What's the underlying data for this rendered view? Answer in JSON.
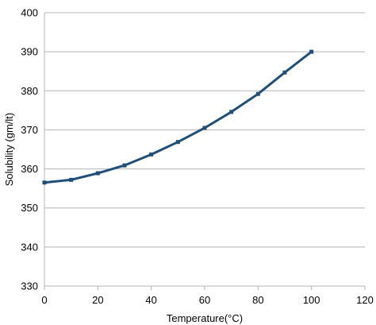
{
  "chart_data": {
    "type": "line",
    "xlabel": "Temperature(°C)",
    "ylabel": "Solubility (gm/lt)",
    "xlim": [
      0,
      120
    ],
    "ylim": [
      330,
      400
    ],
    "x_ticks": [
      0,
      20,
      40,
      60,
      80,
      100,
      120
    ],
    "y_ticks": [
      330,
      340,
      350,
      360,
      370,
      380,
      390,
      400
    ],
    "grid": "horizontal",
    "legend": "none",
    "series": [
      {
        "color": "#1f4e79",
        "marker": "square",
        "x": [
          0,
          10,
          20,
          30,
          40,
          50,
          60,
          70,
          80,
          90,
          100
        ],
        "y": [
          356.5,
          357.2,
          358.9,
          360.9,
          363.7,
          366.9,
          370.5,
          374.6,
          379.2,
          384.7,
          390.0
        ]
      }
    ]
  }
}
